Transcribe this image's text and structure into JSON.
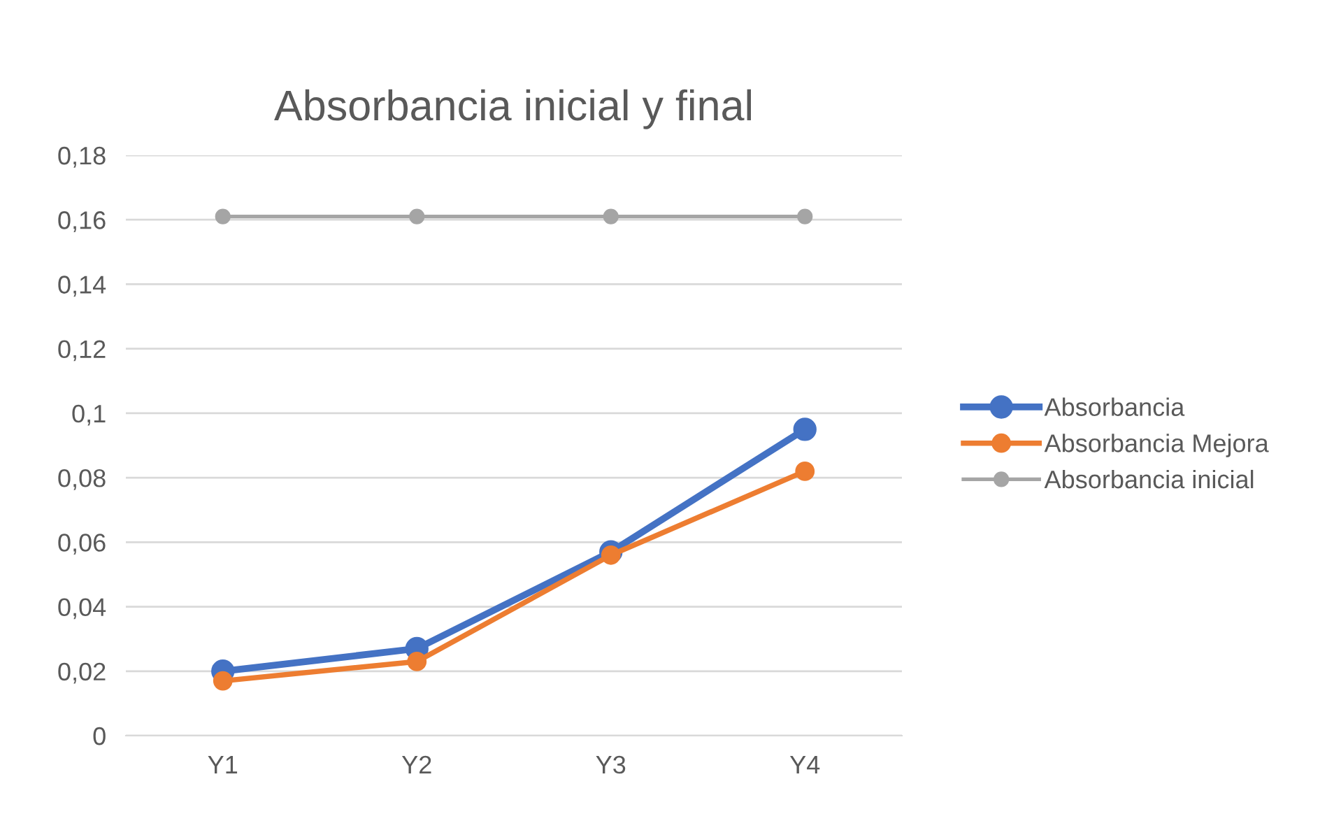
{
  "chart_data": {
    "type": "line",
    "title": "Absorbancia inicial y final",
    "categories": [
      "Y1",
      "Y2",
      "Y3",
      "Y4"
    ],
    "series": [
      {
        "name": "Absorbancia",
        "color": "#4472c4",
        "values": [
          0.02,
          0.027,
          0.057,
          0.095
        ]
      },
      {
        "name": "Absorbancia Mejora",
        "color": "#ed7d31",
        "values": [
          0.017,
          0.023,
          0.056,
          0.082
        ]
      },
      {
        "name": "Absorbancia inicial",
        "color": "#a5a5a5",
        "values": [
          0.161,
          0.161,
          0.161,
          0.161
        ]
      }
    ],
    "ylim": [
      0,
      0.18
    ],
    "yticks": [
      {
        "value": 0,
        "label": "0"
      },
      {
        "value": 0.02,
        "label": "0,02"
      },
      {
        "value": 0.04,
        "label": "0,04"
      },
      {
        "value": 0.06,
        "label": "0,06"
      },
      {
        "value": 0.08,
        "label": "0,08"
      },
      {
        "value": 0.1,
        "label": "0,1"
      },
      {
        "value": 0.12,
        "label": "0,12"
      },
      {
        "value": 0.14,
        "label": "0,14"
      },
      {
        "value": 0.16,
        "label": "0,16"
      },
      {
        "value": 0.18,
        "label": "0,18"
      }
    ],
    "grid": "y",
    "legend": "right",
    "marker": "circle",
    "line_style": "solid"
  }
}
